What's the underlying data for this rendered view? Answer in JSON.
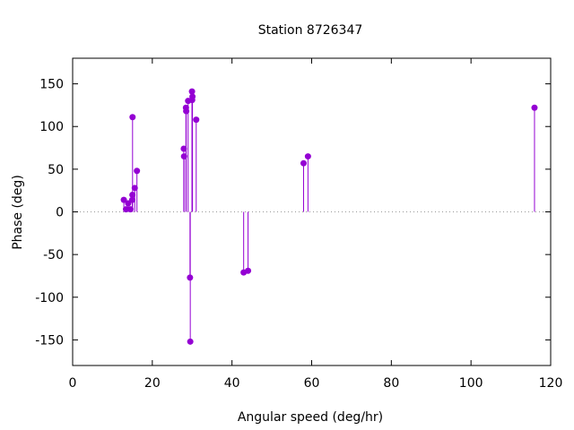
{
  "chart_data": {
    "type": "scatter",
    "style": "impulses-with-points",
    "title": "Station 8726347",
    "xlabel": "Angular speed (deg/hr)",
    "ylabel": "Phase (deg)",
    "xlim": [
      0,
      120
    ],
    "ylim": [
      -180,
      180
    ],
    "xticks": [
      "0",
      "20",
      "40",
      "60",
      "80",
      "100",
      "120"
    ],
    "yticks": [
      "-150",
      "-100",
      "-50",
      "0",
      "50",
      "100",
      "150"
    ],
    "xtick_values": [
      0,
      20,
      40,
      60,
      80,
      100,
      120
    ],
    "ytick_values": [
      -150,
      -100,
      -50,
      0,
      50,
      100,
      150
    ],
    "grid": false,
    "zero_line": "dotted",
    "series": [
      {
        "color": "#9400d3",
        "points": [
          {
            "x": 12.85,
            "y": 14
          },
          {
            "x": 13.4,
            "y": 3
          },
          {
            "x": 13.94,
            "y": 10
          },
          {
            "x": 14.5,
            "y": 3
          },
          {
            "x": 14.96,
            "y": 14
          },
          {
            "x": 15.04,
            "y": 111
          },
          {
            "x": 15.0,
            "y": 20
          },
          {
            "x": 15.59,
            "y": 28
          },
          {
            "x": 16.14,
            "y": 48
          },
          {
            "x": 27.9,
            "y": 74
          },
          {
            "x": 27.97,
            "y": 65
          },
          {
            "x": 28.44,
            "y": 122
          },
          {
            "x": 28.51,
            "y": 118
          },
          {
            "x": 28.99,
            "y": 130
          },
          {
            "x": 29.46,
            "y": -77
          },
          {
            "x": 29.53,
            "y": -152
          },
          {
            "x": 29.96,
            "y": 141
          },
          {
            "x": 30.0,
            "y": 131
          },
          {
            "x": 30.08,
            "y": 135
          },
          {
            "x": 31.02,
            "y": 108
          },
          {
            "x": 42.93,
            "y": -71
          },
          {
            "x": 44.03,
            "y": -69
          },
          {
            "x": 57.97,
            "y": 57
          },
          {
            "x": 59.07,
            "y": 65
          },
          {
            "x": 115.94,
            "y": 122
          }
        ]
      }
    ]
  }
}
